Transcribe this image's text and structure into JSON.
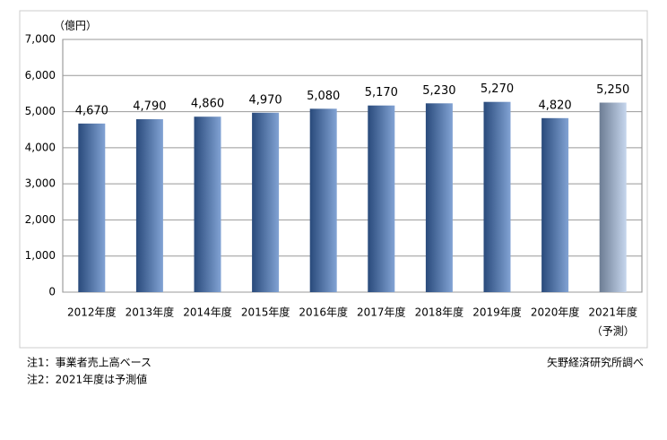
{
  "chart_data": {
    "type": "bar",
    "y_axis_label": "（億円）",
    "categories": [
      "2012年度",
      "2013年度",
      "2014年度",
      "2015年度",
      "2016年度",
      "2017年度",
      "2018年度",
      "2019年度",
      "2020年度",
      "2021年度"
    ],
    "category_notes": [
      null,
      null,
      null,
      null,
      null,
      null,
      null,
      null,
      null,
      "（予測）"
    ],
    "values": [
      4670,
      4790,
      4860,
      4970,
      5080,
      5170,
      5230,
      5270,
      4820,
      5250
    ],
    "value_labels": [
      "4,670",
      "4,790",
      "4,860",
      "4,970",
      "5,080",
      "5,170",
      "5,230",
      "5,270",
      "4,820",
      "5,250"
    ],
    "colors": [
      "#3f72bd",
      "#3f72bd",
      "#3f72bd",
      "#3f72bd",
      "#3f72bd",
      "#3f72bd",
      "#3f72bd",
      "#3f72bd",
      "#3f72bd",
      "#a7c0e4"
    ],
    "ylim": [
      0,
      7000
    ],
    "yticks": [
      0,
      {
        "value": 1000,
        "label": "1,000"
      },
      {
        "value": 2000,
        "label": "2,000"
      },
      {
        "value": 3000,
        "label": "3,000"
      },
      {
        "value": 4000,
        "label": "4,000"
      },
      {
        "value": 5000,
        "label": "5,000"
      },
      {
        "value": 6000,
        "label": "6,000"
      },
      {
        "value": 7000,
        "label": "7,000"
      }
    ],
    "grid": true,
    "notes": [
      "注1：事業者売上高ベース",
      "注2：2021年度は予測値"
    ],
    "source": "矢野経済研究所調べ"
  }
}
